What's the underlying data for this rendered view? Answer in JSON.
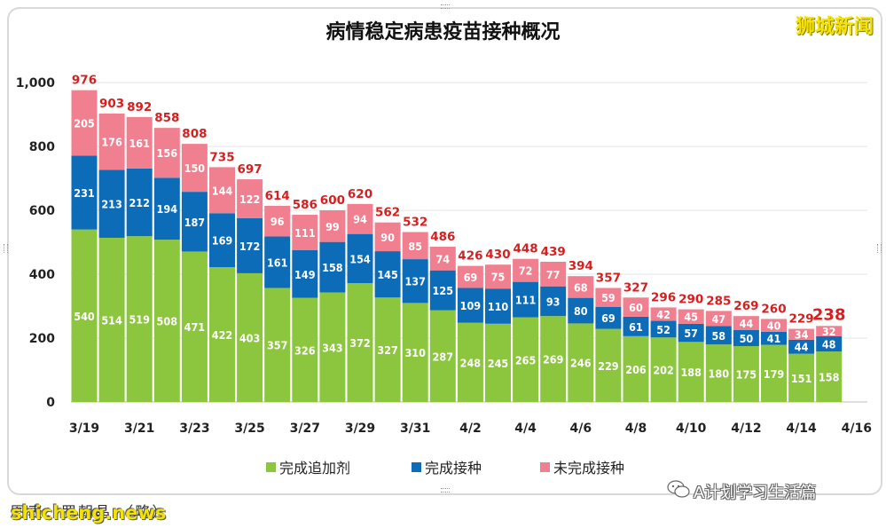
{
  "title": "病情稳定病患疫苗接种概况",
  "brand": "狮城新闻",
  "watermark": "A计划学习生活篇",
  "credit": "图表：罗朝晶 （略）",
  "source": "shicheng.news",
  "colors": {
    "booster": "#8cc63e",
    "vaccinated": "#0d6cb8",
    "unvaccinated": "#f08090",
    "total": "#d42020",
    "grid": "#e4e4e4"
  },
  "chart_data": {
    "type": "bar",
    "stacked": true,
    "categories": [
      "3/19",
      "3/20",
      "3/21",
      "3/22",
      "3/23",
      "3/24",
      "3/25",
      "3/26",
      "3/27",
      "3/28",
      "3/29",
      "3/30",
      "3/31",
      "4/1",
      "4/2",
      "4/3",
      "4/4",
      "4/5",
      "4/6",
      "4/7",
      "4/8",
      "4/9",
      "4/10",
      "4/11",
      "4/12",
      "4/13",
      "4/14",
      "4/15"
    ],
    "series": [
      {
        "name": "完成追加剂",
        "values": [
          540,
          514,
          519,
          508,
          471,
          422,
          403,
          357,
          326,
          343,
          372,
          327,
          310,
          287,
          248,
          245,
          265,
          269,
          246,
          229,
          206,
          202,
          188,
          180,
          175,
          179,
          151,
          158
        ]
      },
      {
        "name": "完成接种",
        "values": [
          231,
          213,
          212,
          194,
          187,
          169,
          172,
          161,
          149,
          158,
          154,
          145,
          137,
          125,
          109,
          110,
          111,
          93,
          80,
          69,
          61,
          52,
          57,
          58,
          50,
          41,
          44,
          48
        ]
      },
      {
        "name": "未完成接种",
        "values": [
          205,
          176,
          161,
          156,
          150,
          144,
          122,
          96,
          111,
          99,
          94,
          90,
          85,
          74,
          69,
          75,
          72,
          77,
          68,
          59,
          60,
          42,
          45,
          47,
          44,
          40,
          34,
          32
        ]
      }
    ],
    "totals": [
      976,
      903,
      892,
      858,
      808,
      735,
      697,
      614,
      586,
      600,
      620,
      562,
      532,
      486,
      426,
      430,
      448,
      439,
      394,
      357,
      327,
      296,
      290,
      285,
      269,
      260,
      229,
      238
    ],
    "x_tick_labels": [
      "3/19",
      "3/21",
      "3/23",
      "3/25",
      "3/27",
      "3/29",
      "3/31",
      "4/2",
      "4/4",
      "4/6",
      "4/8",
      "4/10",
      "4/12",
      "4/14",
      "4/16"
    ],
    "y_ticks": [
      "0",
      "200",
      "400",
      "600",
      "800",
      "1,000"
    ],
    "ylim": [
      0,
      1000
    ],
    "grid": true,
    "legend_position": "bottom"
  }
}
